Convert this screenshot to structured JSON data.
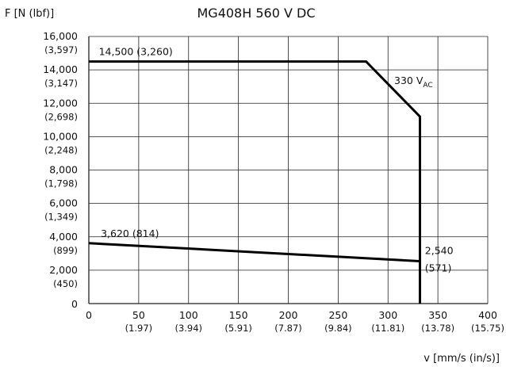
{
  "chart_data": {
    "type": "line",
    "title": "MG408H   560 V DC",
    "ylabel": "F [N (lbf)]",
    "xlabel": "v [mm/s (in/s)]",
    "xlim": [
      0,
      400
    ],
    "ylim": [
      0,
      16000
    ],
    "grid": true,
    "x_ticks": [
      {
        "value": 0,
        "label": "0",
        "sub": ""
      },
      {
        "value": 50,
        "label": "50",
        "sub": "(1.97)"
      },
      {
        "value": 100,
        "label": "100",
        "sub": "(3.94)"
      },
      {
        "value": 150,
        "label": "150",
        "sub": "(5.91)"
      },
      {
        "value": 200,
        "label": "200",
        "sub": "(7.87)"
      },
      {
        "value": 250,
        "label": "250",
        "sub": "(9.84)"
      },
      {
        "value": 300,
        "label": "300",
        "sub": "(11.81)"
      },
      {
        "value": 350,
        "label": "350",
        "sub": "(13.78)"
      },
      {
        "value": 400,
        "label": "400",
        "sub": "(15.75)"
      }
    ],
    "y_ticks": [
      {
        "value": 0,
        "label": "0",
        "sub": ""
      },
      {
        "value": 2000,
        "label": "2,000",
        "sub": "(450)"
      },
      {
        "value": 4000,
        "label": "4,000",
        "sub": "(899)"
      },
      {
        "value": 6000,
        "label": "6,000",
        "sub": "(1,349)"
      },
      {
        "value": 8000,
        "label": "8,000",
        "sub": "(1,798)"
      },
      {
        "value": 10000,
        "label": "10,000",
        "sub": "(2,248)"
      },
      {
        "value": 12000,
        "label": "12,000",
        "sub": "(2,698)"
      },
      {
        "value": 14000,
        "label": "14,000",
        "sub": "(3,147)"
      },
      {
        "value": 16000,
        "label": "16,000",
        "sub": "(3,597)"
      }
    ],
    "series": [
      {
        "name": "330 V AC",
        "x": [
          0,
          278,
          332,
          332
        ],
        "y": [
          14500,
          14500,
          11200,
          0
        ]
      },
      {
        "name": "",
        "x": [
          0,
          332,
          332
        ],
        "y": [
          3620,
          2540,
          0
        ]
      }
    ],
    "annotations": [
      {
        "text": "14,500 (3,260)",
        "x": 10,
        "y": 14500,
        "pos": "above"
      },
      {
        "text": "3,620 (814)",
        "x": 12,
        "y": 3620,
        "pos": "above"
      },
      {
        "text": "2,540",
        "x": 337,
        "y": 2540,
        "pos": "above-right"
      },
      {
        "text": "(571)",
        "x": 337,
        "y": 2540,
        "pos": "below-right"
      }
    ],
    "series_label": {
      "main": "330 V",
      "sub": "AC"
    }
  }
}
